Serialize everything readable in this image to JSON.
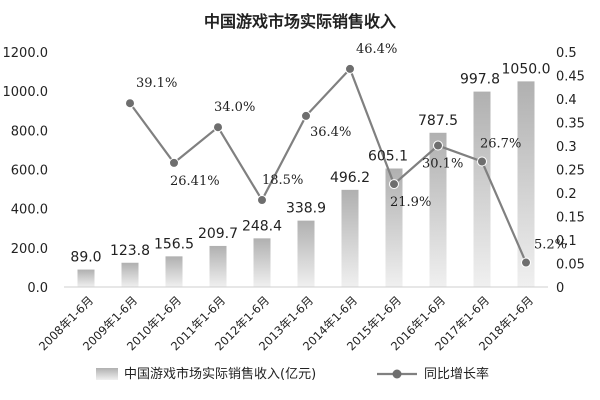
{
  "chart_data": {
    "type": "bar",
    "title": "中国游戏市场实际销售收入",
    "categories": [
      "2008年1-6月",
      "2009年1-6月",
      "2010年1-6月",
      "2011年1-6月",
      "2012年1-6月",
      "2013年1-6月",
      "2014年1-6月",
      "2015年1-6月",
      "2016年1-6月",
      "2017年1-6月",
      "2018年1-6月"
    ],
    "series": [
      {
        "name": "中国游戏市场实际销售收入(亿元)",
        "type": "bar",
        "axis": "left",
        "values": [
          89.0,
          123.8,
          156.5,
          209.7,
          248.4,
          338.9,
          496.2,
          605.1,
          787.5,
          997.8,
          1050.0
        ],
        "labels": [
          "89.0",
          "123.8",
          "156.5",
          "209.7",
          "248.4",
          "338.9",
          "496.2",
          "605.1",
          "787.5",
          "997.8",
          "1050.0"
        ]
      },
      {
        "name": "同比增长率",
        "type": "line",
        "axis": "right",
        "values": [
          null,
          0.391,
          0.2641,
          0.34,
          0.185,
          0.364,
          0.464,
          0.219,
          0.301,
          0.267,
          0.052
        ],
        "labels": [
          "",
          "39.1%",
          "26.41%",
          "34.0%",
          "18.5%",
          "36.4%",
          "46.4%",
          "21.9%",
          "30.1%",
          "26.7%",
          "5.2%"
        ]
      }
    ],
    "y_left": {
      "ylim": [
        0,
        1200
      ],
      "ticks": [
        "0.0",
        "200.0",
        "400.0",
        "600.0",
        "800.0",
        "1000.0",
        "1200.0"
      ]
    },
    "y_right": {
      "ylim": [
        0,
        0.5
      ],
      "ticks": [
        "0",
        "0.05",
        "0.1",
        "0.15",
        "0.2",
        "0.25",
        "0.3",
        "0.35",
        "0.4",
        "0.45",
        "0.5"
      ]
    },
    "legend": {
      "position": "bottom",
      "items": [
        "中国游戏市场实际销售收入(亿元)",
        "同比增长率"
      ]
    },
    "grid": false,
    "colors": {
      "bar_top": "#b0b0b0",
      "bar_bottom": "#f0f0f0",
      "line": "#808080",
      "marker": "#6e6e6e",
      "text": "#222222"
    }
  }
}
